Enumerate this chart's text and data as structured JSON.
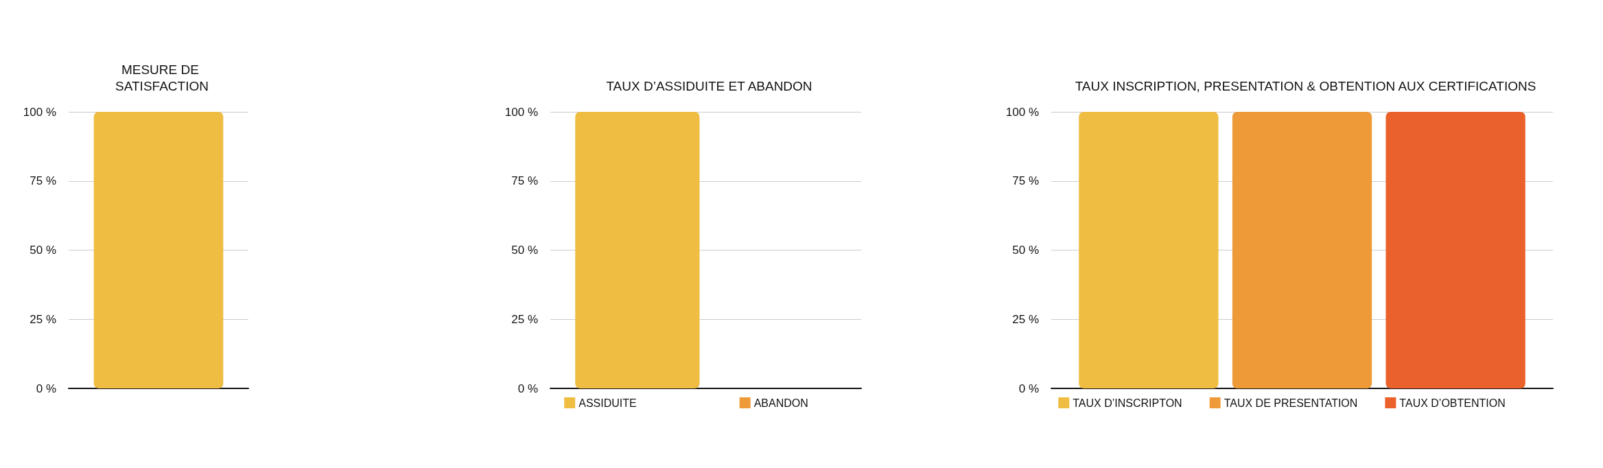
{
  "chart_data": [
    {
      "type": "bar",
      "title": "MESURE DE SATISFACTION",
      "categories": [
        null
      ],
      "series": [
        {
          "color": "#eebd42",
          "values": [
            100
          ]
        }
      ],
      "ylim": [
        0,
        100
      ],
      "yticks": [
        {
          "value": 0,
          "label": "0 %"
        },
        {
          "value": 25,
          "label": "25 %"
        },
        {
          "value": 50,
          "label": "50 %"
        },
        {
          "value": 75,
          "label": "75 %"
        },
        {
          "value": 100,
          "label": "100 %"
        }
      ],
      "grid": "y",
      "legend": false
    },
    {
      "type": "bar",
      "title": "TAUX D’ASSIDUITE ET ABANDON",
      "categories": [
        null
      ],
      "series": [
        {
          "name": "ASSIDUITE",
          "color": "#eebd42",
          "values": [
            100
          ]
        },
        {
          "name": "ABANDON",
          "color": "#ef9a38",
          "values": [
            0
          ]
        }
      ],
      "ylim": [
        0,
        100
      ],
      "yticks": [
        {
          "value": 0,
          "label": "0 %"
        },
        {
          "value": 25,
          "label": "25 %"
        },
        {
          "value": 50,
          "label": "50 %"
        },
        {
          "value": 75,
          "label": "75 %"
        },
        {
          "value": 100,
          "label": "100 %"
        }
      ],
      "grid": "y",
      "legend": "bottom"
    },
    {
      "type": "bar",
      "title": "TAUX INSCRIPTION, PRESENTATION & OBTENTION AUX CERTIFICATIONS",
      "categories": [
        null
      ],
      "series": [
        {
          "name": "TAUX D’INSCRIPTON",
          "color": "#eebd42",
          "values": [
            100
          ]
        },
        {
          "name": "TAUX DE PRESENTATION",
          "color": "#ef9a38",
          "values": [
            100
          ]
        },
        {
          "name": "TAUX D’OBTENTION",
          "color": "#eb612c",
          "values": [
            100
          ]
        }
      ],
      "ylim": [
        0,
        100
      ],
      "yticks": [
        {
          "value": 0,
          "label": "0 %"
        },
        {
          "value": 25,
          "label": "25 %"
        },
        {
          "value": 50,
          "label": "50 %"
        },
        {
          "value": 75,
          "label": "75 %"
        },
        {
          "value": 100,
          "label": "100 %"
        }
      ],
      "grid": "y",
      "legend": "bottom"
    }
  ]
}
